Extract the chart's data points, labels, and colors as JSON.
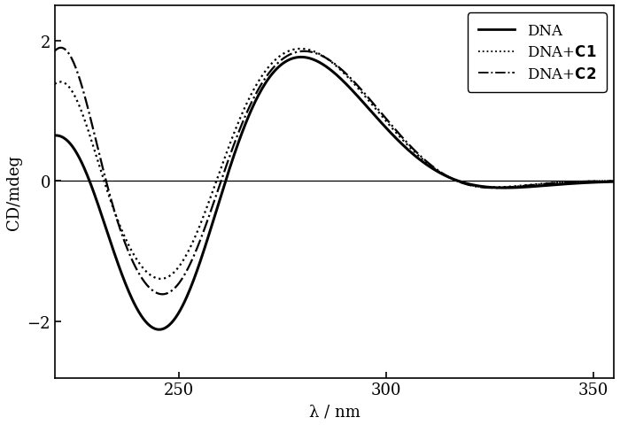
{
  "title": "",
  "xlabel": "λ / nm",
  "ylabel": "CD/mdeg",
  "xlim": [
    220,
    355
  ],
  "ylim": [
    -2.8,
    2.5
  ],
  "yticks": [
    -2,
    0,
    2
  ],
  "xticks": [
    250,
    300,
    350
  ],
  "legend_labels": [
    "DNA",
    "DNA+C1",
    "DNA+C2"
  ],
  "background_color": "#ffffff",
  "line_color": "#000000",
  "figsize": [
    7.0,
    4.81
  ],
  "dpi": 100
}
